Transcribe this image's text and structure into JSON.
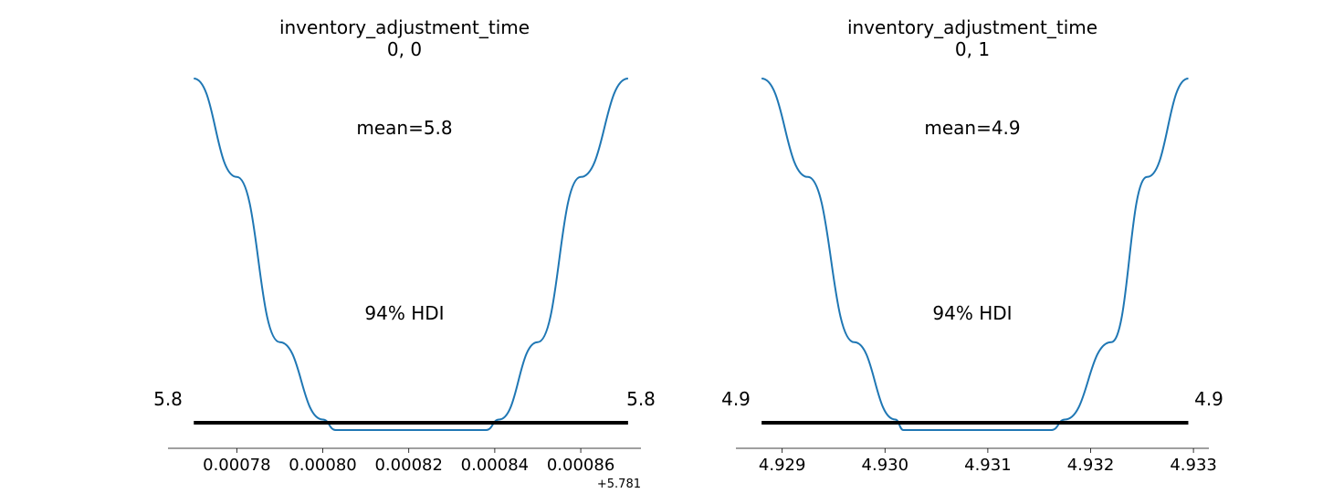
{
  "chart_data": [
    {
      "type": "line",
      "title": "inventory_adjustment_time",
      "subtitle": "0, 0",
      "mean_label": "mean=5.8",
      "hdi_label": "94% HDI",
      "hdi_lower_label": "5.8",
      "hdi_upper_label": "5.8",
      "x_offset_label": "+5.781",
      "x_offset": 5.781,
      "xlim": [
        0.000764,
        0.000874
      ],
      "xticks": [
        0.00078,
        0.0008,
        0.00082,
        0.00084,
        0.00086
      ],
      "xtick_labels": [
        "0.00078",
        "0.00080",
        "0.00082",
        "0.00084",
        "0.00086"
      ],
      "hdi_interval": [
        0.00077,
        0.000871
      ],
      "line_color": "#1f77b4",
      "yaxis_visible": false,
      "x": [
        0.00077,
        0.00078,
        0.00079,
        0.0008,
        0.000803,
        0.00082,
        0.000838,
        0.000841,
        0.00085,
        0.00086,
        0.000871
      ],
      "y": [
        1.0,
        0.72,
        0.25,
        0.03,
        0.0,
        0.0,
        0.0,
        0.03,
        0.25,
        0.72,
        1.0
      ]
    },
    {
      "type": "line",
      "title": "inventory_adjustment_time",
      "subtitle": "0, 1",
      "mean_label": "mean=4.9",
      "hdi_label": "94% HDI",
      "hdi_lower_label": "4.9",
      "hdi_upper_label": "4.9",
      "xlim": [
        4.92855,
        4.93315
      ],
      "xticks": [
        4.929,
        4.93,
        4.931,
        4.932,
        4.933
      ],
      "xtick_labels": [
        "4.929",
        "4.930",
        "4.931",
        "4.932",
        "4.933"
      ],
      "hdi_interval": [
        4.9288,
        4.93295
      ],
      "line_color": "#1f77b4",
      "yaxis_visible": false,
      "x": [
        4.9288,
        4.92925,
        4.9297,
        4.9301,
        4.93018,
        4.93088,
        4.93162,
        4.93175,
        4.9322,
        4.93255,
        4.93295
      ],
      "y": [
        1.0,
        0.72,
        0.25,
        0.03,
        0.0,
        0.0,
        0.0,
        0.03,
        0.25,
        0.72,
        1.0
      ]
    }
  ]
}
